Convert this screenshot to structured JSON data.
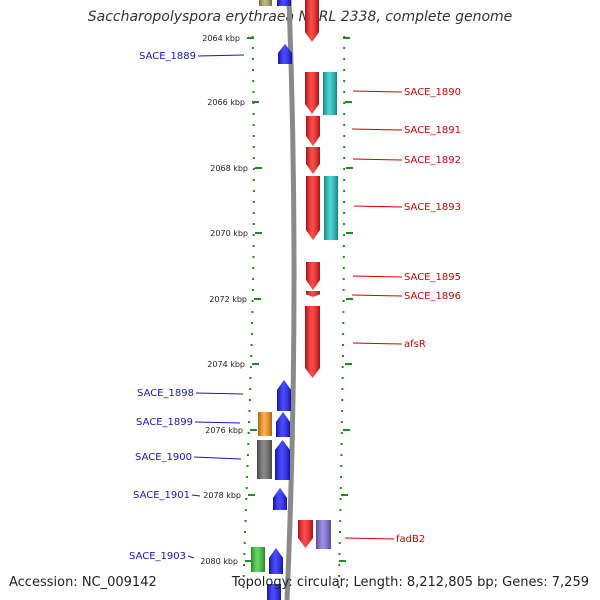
{
  "title": "Saccharopolyspora erythraea NRRL 2338, complete genome",
  "footer": {
    "accession": "Accession: NC_009142",
    "summary": "Topology: circular; Length: 8,212,805 bp; Genes: 7,259"
  },
  "colors": {
    "forward": "#1a1aff",
    "reverse": "#ff1a1a",
    "cyan": "#1ec8c8",
    "orange": "#ff9a1a",
    "gray": "#6a6a6a",
    "green": "#3ccc3c",
    "purple": "#8070e0",
    "olive": "#b0a860",
    "backbone": "#8a8a8a",
    "scale_green": "#1e8c1e",
    "label_blue": "#1414c8",
    "label_red": "#d40000"
  },
  "scale": {
    "unit": "kbp",
    "tick_labels": [
      "2064 kbp",
      "2066 kbp",
      "2068 kbp",
      "2070 kbp",
      "2072 kbp",
      "2074 kbp",
      "2076 kbp",
      "2078 kbp",
      "2080 kbp"
    ]
  },
  "genes_left": [
    "SACE_1889",
    "SACE_1898",
    "SACE_1899",
    "SACE_1900",
    "SACE_1901",
    "SACE_1903"
  ],
  "genes_right": [
    "SACE_1890",
    "SACE_1891",
    "SACE_1892",
    "SACE_1893",
    "SACE_1895",
    "SACE_1896",
    "afsR",
    "fadB2"
  ]
}
